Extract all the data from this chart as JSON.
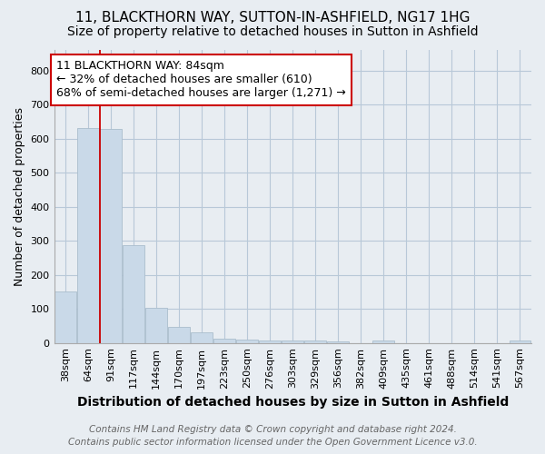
{
  "title": "11, BLACKTHORN WAY, SUTTON-IN-ASHFIELD, NG17 1HG",
  "subtitle": "Size of property relative to detached houses in Sutton in Ashfield",
  "xlabel": "Distribution of detached houses by size in Sutton in Ashfield",
  "ylabel": "Number of detached properties",
  "footer_line1": "Contains HM Land Registry data © Crown copyright and database right 2024.",
  "footer_line2": "Contains public sector information licensed under the Open Government Licence v3.0.",
  "annotation_line1": "11 BLACKTHORN WAY: 84sqm",
  "annotation_line2": "← 32% of detached houses are smaller (610)",
  "annotation_line3": "68% of semi-detached houses are larger (1,271) →",
  "bar_categories": [
    "38sqm",
    "64sqm",
    "91sqm",
    "117sqm",
    "144sqm",
    "170sqm",
    "197sqm",
    "223sqm",
    "250sqm",
    "276sqm",
    "303sqm",
    "329sqm",
    "356sqm",
    "382sqm",
    "409sqm",
    "435sqm",
    "461sqm",
    "488sqm",
    "514sqm",
    "541sqm",
    "567sqm"
  ],
  "bar_values": [
    150,
    632,
    627,
    288,
    103,
    46,
    31,
    13,
    10,
    8,
    7,
    7,
    5,
    0,
    6,
    0,
    0,
    0,
    0,
    0,
    8
  ],
  "bar_color": "#c9d9e8",
  "bar_edge_color": "#aabdcc",
  "red_line_x": 1.5,
  "ylim": [
    0,
    860
  ],
  "yticks": [
    0,
    100,
    200,
    300,
    400,
    500,
    600,
    700,
    800
  ],
  "figure_bg_color": "#e8edf2",
  "plot_bg_color": "#e8edf2",
  "grid_color": "#b8c8d8",
  "annotation_box_color": "#ffffff",
  "annotation_box_edge": "#cc0000",
  "red_line_color": "#cc0000",
  "title_fontsize": 11,
  "subtitle_fontsize": 10,
  "xlabel_fontsize": 10,
  "ylabel_fontsize": 9,
  "tick_fontsize": 8,
  "footer_fontsize": 7.5,
  "annotation_fontsize": 9
}
